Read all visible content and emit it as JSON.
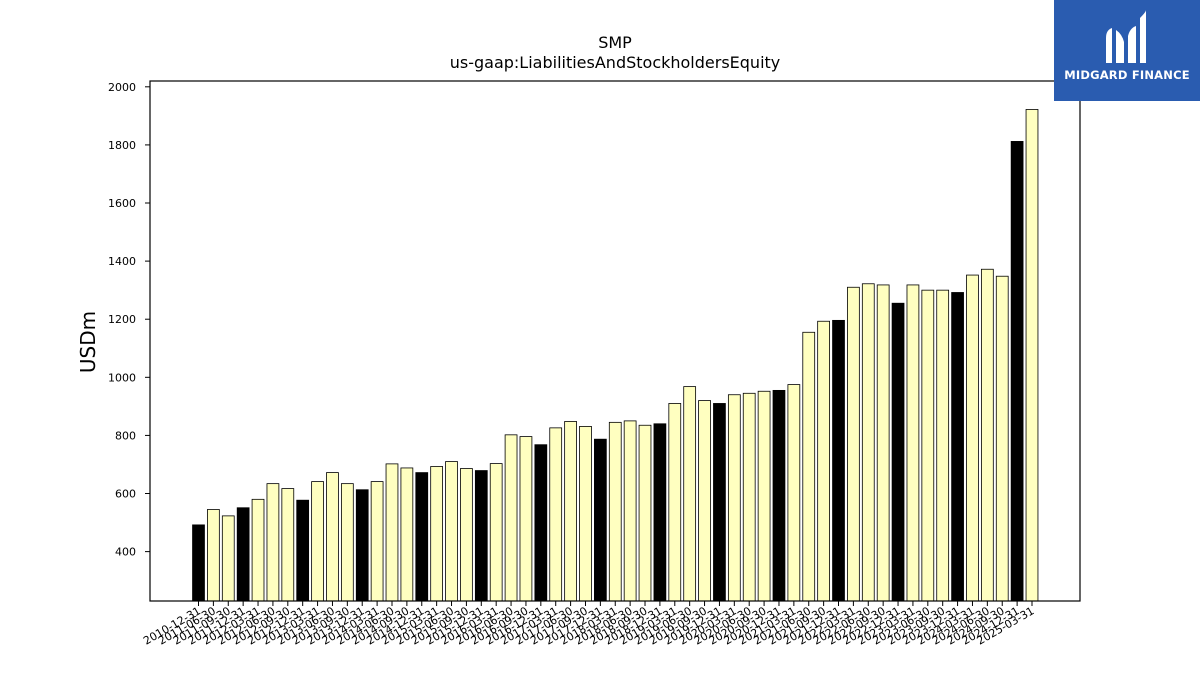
{
  "chart_data": {
    "type": "bar",
    "title": "SMP",
    "subtitle": "us-gaap:LiabilitiesAndStockholdersEquity",
    "xlabel": "",
    "ylabel": "USDm",
    "ylim": [
      230,
      2020
    ],
    "yticks": [
      400,
      600,
      800,
      1000,
      1200,
      1400,
      1600,
      1800,
      2000
    ],
    "grid": false,
    "colors": {
      "annual": "#000000",
      "quarterly": "#ffffc0",
      "edge": "#000000"
    },
    "categories": [
      "2010-12-31",
      "2011-06-30",
      "2011-09-30",
      "2011-12-31",
      "2012-03-31",
      "2012-06-30",
      "2012-09-30",
      "2012-12-31",
      "2013-03-31",
      "2013-06-30",
      "2013-09-30",
      "2013-12-31",
      "2014-03-31",
      "2014-06-30",
      "2014-09-30",
      "2014-12-31",
      "2015-03-31",
      "2015-06-30",
      "2015-09-30",
      "2015-12-31",
      "2016-03-31",
      "2016-06-30",
      "2016-09-30",
      "2016-12-31",
      "2017-03-31",
      "2017-06-30",
      "2017-09-30",
      "2017-12-31",
      "2018-03-31",
      "2018-06-30",
      "2018-09-30",
      "2018-12-31",
      "2019-03-31",
      "2019-06-30",
      "2019-09-30",
      "2019-12-31",
      "2020-03-31",
      "2020-06-30",
      "2020-09-30",
      "2020-12-31",
      "2021-03-31",
      "2021-06-30",
      "2021-09-30",
      "2021-12-31",
      "2022-03-31",
      "2022-06-30",
      "2022-09-30",
      "2022-12-31",
      "2023-03-31",
      "2023-06-30",
      "2023-09-30",
      "2023-12-31",
      "2024-03-31",
      "2024-06-30",
      "2024-09-30",
      "2024-12-31",
      "2025-03-31"
    ],
    "values": [
      492,
      545,
      523,
      551,
      580,
      634,
      617,
      577,
      641,
      672,
      634,
      613,
      641,
      702,
      688,
      672,
      693,
      710,
      686,
      679,
      703,
      802,
      796,
      768,
      826,
      848,
      831,
      787,
      845,
      850,
      835,
      840,
      910,
      968,
      920,
      910,
      940,
      945,
      952,
      955,
      975,
      1155,
      1193,
      1196,
      1310,
      1322,
      1318,
      1255,
      1318,
      1300,
      1300,
      1292,
      1352,
      1372,
      1348,
      1812,
      1922
    ],
    "annual": [
      true,
      false,
      false,
      true,
      false,
      false,
      false,
      true,
      false,
      false,
      false,
      true,
      false,
      false,
      false,
      true,
      false,
      false,
      false,
      true,
      false,
      false,
      false,
      true,
      false,
      false,
      false,
      true,
      false,
      false,
      false,
      true,
      false,
      false,
      false,
      true,
      false,
      false,
      false,
      true,
      false,
      false,
      false,
      true,
      false,
      false,
      false,
      true,
      false,
      false,
      false,
      true,
      false,
      false,
      false,
      true,
      false
    ]
  },
  "logo": {
    "text": "MIDGARD FINANCE",
    "color": "#2a5cb0"
  }
}
